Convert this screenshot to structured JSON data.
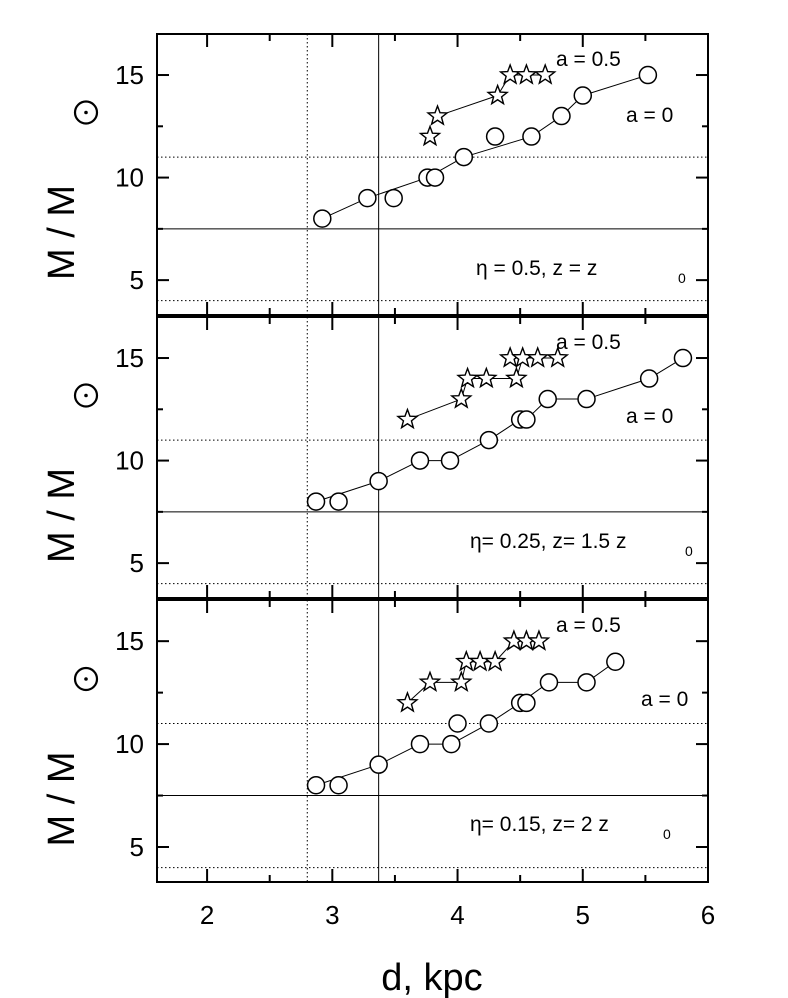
{
  "chart_data": {
    "type": "scatter",
    "shared_x_axis": {
      "label": "d, kpc",
      "xlim": [
        1.6,
        6.0
      ],
      "ticks": [
        2,
        3,
        4,
        5,
        6
      ],
      "tick_labels": [
        "2",
        "3",
        "4",
        "5",
        "6"
      ]
    },
    "y_axis": {
      "label": "M / M",
      "label_symbol": "sun-symbol",
      "ylim": [
        3.3,
        17
      ],
      "ticks": [
        5,
        10,
        15
      ],
      "tick_labels": [
        "5",
        "10",
        "15"
      ]
    },
    "reference_lines": {
      "vertical_dotted_x": 2.8,
      "vertical_solid_x": 3.37,
      "horizontal_solid_y": 7.5,
      "horizontal_dotted_y": [
        4,
        11
      ]
    },
    "panels": [
      {
        "annotation": {
          "eta": "η = 0.5,  z  =  z",
          "sub": "0"
        },
        "series": [
          {
            "name": "a = 0",
            "marker": "circle",
            "x": [
              2.92,
              3.28,
              3.49,
              3.76,
              3.82,
              4.05,
              4.3,
              4.59,
              4.83,
              5.0,
              5.52
            ],
            "y": [
              8,
              9,
              9,
              10,
              10,
              11,
              12,
              12,
              13,
              14,
              15
            ]
          },
          {
            "name": "a = 0.5",
            "marker": "star",
            "x": [
              3.78,
              3.84,
              4.32,
              4.42,
              4.55,
              4.7
            ],
            "y": [
              12,
              13,
              14,
              15,
              15,
              15
            ]
          }
        ]
      },
      {
        "annotation": {
          "eta": "η= 0.25, z= 1.5 z",
          "sub": "0"
        },
        "series": [
          {
            "name": "a = 0",
            "marker": "circle",
            "x": [
              2.87,
              3.05,
              3.37,
              3.7,
              3.94,
              4.25,
              4.5,
              4.55,
              4.72,
              5.03,
              5.53,
              5.8
            ],
            "y": [
              8,
              8,
              9,
              10,
              10,
              11,
              12,
              12,
              13,
              13,
              14,
              15
            ]
          },
          {
            "name": "a = 0.5",
            "marker": "star",
            "x": [
              3.6,
              4.03,
              4.08,
              4.23,
              4.42,
              4.47,
              4.52,
              4.64,
              4.8
            ],
            "y": [
              12,
              13,
              14,
              14,
              15,
              14,
              15,
              15,
              15
            ]
          }
        ]
      },
      {
        "annotation": {
          "eta": "η= 0.15, z= 2 z",
          "sub": "0"
        },
        "series": [
          {
            "name": "a = 0",
            "marker": "circle",
            "x": [
              2.87,
              3.05,
              3.37,
              3.7,
              3.95,
              4.0,
              4.25,
              4.5,
              4.55,
              4.73,
              5.03,
              5.26
            ],
            "y": [
              8,
              8,
              9,
              10,
              10,
              11,
              11,
              12,
              12,
              13,
              13,
              14
            ]
          },
          {
            "name": "a = 0.5",
            "marker": "star",
            "x": [
              3.6,
              3.78,
              4.03,
              4.07,
              4.18,
              4.3,
              4.45,
              4.55,
              4.65
            ],
            "y": [
              12,
              13,
              13,
              14,
              14,
              14,
              15,
              15,
              15
            ]
          }
        ]
      }
    ]
  },
  "lines": {
    "circle": [
      [
        [
          2.92,
          8
        ],
        [
          3.28,
          9
        ],
        [
          3.76,
          10
        ],
        [
          4.05,
          11
        ],
        [
          4.59,
          12
        ],
        [
          4.83,
          13
        ],
        [
          5.0,
          14
        ],
        [
          5.52,
          15
        ]
      ],
      [
        [
          2.87,
          8
        ],
        [
          3.37,
          9
        ],
        [
          3.7,
          10
        ],
        [
          3.94,
          10
        ],
        [
          4.25,
          11
        ],
        [
          4.5,
          12
        ],
        [
          4.55,
          12
        ],
        [
          4.72,
          13
        ],
        [
          5.03,
          13
        ],
        [
          5.53,
          14
        ],
        [
          5.8,
          15
        ]
      ],
      [
        [
          2.87,
          8
        ],
        [
          3.37,
          9
        ],
        [
          3.7,
          10
        ],
        [
          3.95,
          10
        ],
        [
          4.25,
          11
        ],
        [
          4.5,
          12
        ],
        [
          4.73,
          13
        ],
        [
          5.03,
          13
        ],
        [
          5.26,
          14
        ]
      ]
    ],
    "star": [
      [
        [
          3.84,
          13
        ],
        [
          4.32,
          14
        ],
        [
          4.42,
          15
        ],
        [
          4.7,
          15
        ]
      ],
      [
        [
          3.6,
          12
        ],
        [
          4.03,
          13
        ],
        [
          4.08,
          14
        ],
        [
          4.47,
          14
        ],
        [
          4.52,
          15
        ],
        [
          4.8,
          15
        ]
      ],
      [
        [
          3.6,
          12
        ],
        [
          3.78,
          13
        ],
        [
          4.03,
          13
        ],
        [
          4.07,
          14
        ],
        [
          4.3,
          14
        ],
        [
          4.45,
          15
        ],
        [
          4.65,
          15
        ]
      ]
    ]
  },
  "labels_text": {
    "a0": "a = 0",
    "a05": "a = 0.5"
  }
}
